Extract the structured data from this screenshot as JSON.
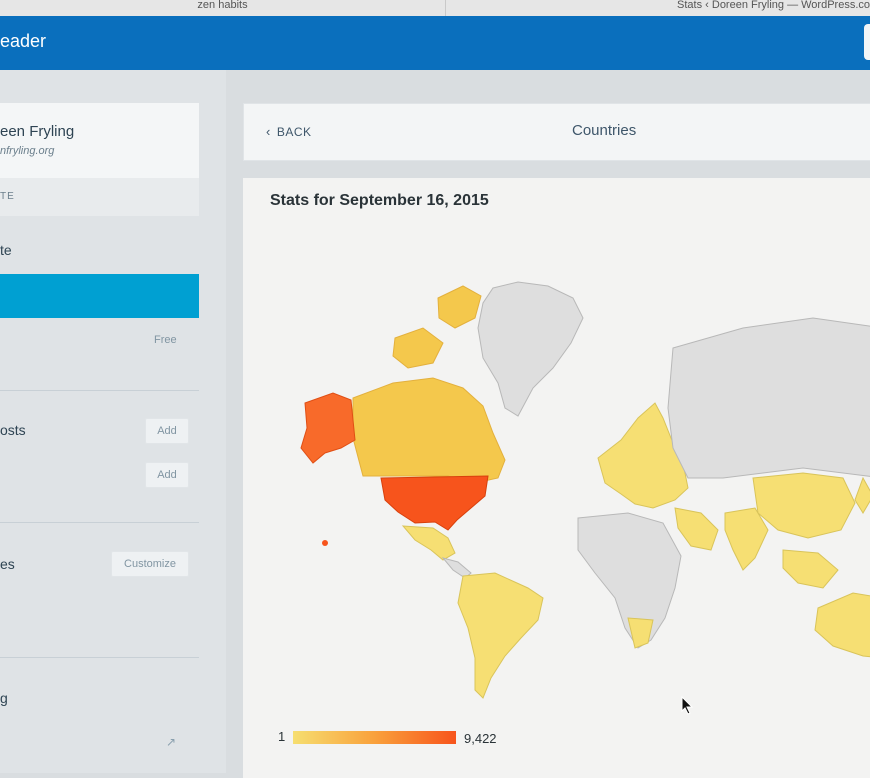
{
  "browser": {
    "tabs": [
      {
        "label": "zen habits"
      },
      {
        "label": "Stats ‹ Doreen Fryling — WordPress.co"
      }
    ]
  },
  "masterbar": {
    "reader_label": "eader"
  },
  "sidebar": {
    "site_name": "een Fryling",
    "site_url": "nfryling.org",
    "switch_site": "TE",
    "items": [
      {
        "label": "te"
      },
      {
        "label": "Free"
      },
      {
        "label": "osts",
        "button": "Add"
      },
      {
        "label": "",
        "button": "Add"
      },
      {
        "label": "es",
        "button": "Customize"
      },
      {
        "label": "g"
      }
    ]
  },
  "header": {
    "back_label": "BACK",
    "title": "Countries"
  },
  "map": {
    "title": "Stats for September 16, 2015",
    "legend": {
      "min": "1",
      "max": "9,422"
    },
    "colors": {
      "none": "#dcdcdc",
      "low": "#f6df73",
      "mid": "#f4c84c",
      "high": "#f86a2a",
      "max": "#f7541c"
    },
    "highlighted_countries": [
      "United States",
      "Alaska (US)",
      "Canada",
      "Mexico",
      "Brazil",
      "Europe",
      "China",
      "India",
      "Australia"
    ]
  }
}
